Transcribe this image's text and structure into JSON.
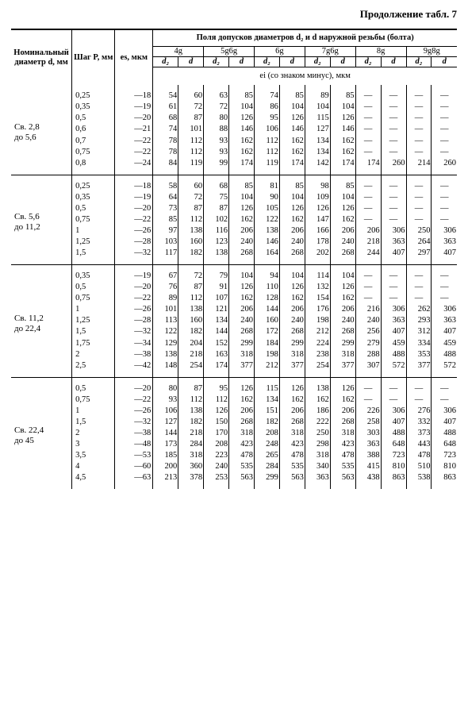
{
  "caption": "Продолжение табл. 7",
  "header": {
    "nominal": "Номи­наль­ный диаметр d, мм",
    "pitch": "Шаг P, мм",
    "es": "es, мкм",
    "group_title": "Поля допусков диаметров d₂ и d наружной резьбы (болта)",
    "tol_classes": [
      "4g",
      "5g6g",
      "6g",
      "7g6g",
      "8g",
      "9g8g"
    ],
    "sub_d2": "d₂",
    "sub_d": "d",
    "ei_line": "ei (со знаком минус), мкм"
  },
  "sections": [
    {
      "label_lines": [
        "Св. 2,8",
        "до 5,6"
      ],
      "rows": [
        {
          "P": "0,25",
          "es": "—18",
          "v": [
            "54",
            "60",
            "63",
            "85",
            "74",
            "85",
            "89",
            "85",
            "—",
            "—",
            "—",
            "—"
          ]
        },
        {
          "P": "0,35",
          "es": "—19",
          "v": [
            "61",
            "72",
            "72",
            "104",
            "86",
            "104",
            "104",
            "104",
            "—",
            "—",
            "—",
            "—"
          ]
        },
        {
          "P": "0,5",
          "es": "—20",
          "v": [
            "68",
            "87",
            "80",
            "126",
            "95",
            "126",
            "115",
            "126",
            "—",
            "—",
            "—",
            "—"
          ]
        },
        {
          "P": "0,6",
          "es": "—21",
          "v": [
            "74",
            "101",
            "88",
            "146",
            "106",
            "146",
            "127",
            "146",
            "—",
            "—",
            "—",
            "—"
          ]
        },
        {
          "P": "0,7",
          "es": "—22",
          "v": [
            "78",
            "112",
            "93",
            "162",
            "112",
            "162",
            "134",
            "162",
            "—",
            "—",
            "—",
            "—"
          ]
        },
        {
          "P": "0,75",
          "es": "—22",
          "v": [
            "78",
            "112",
            "93",
            "162",
            "112",
            "162",
            "134",
            "162",
            "—",
            "—",
            "—",
            "—"
          ]
        },
        {
          "P": "0,8",
          "es": "—24",
          "v": [
            "84",
            "119",
            "99",
            "174",
            "119",
            "174",
            "142",
            "174",
            "174",
            "260",
            "214",
            "260"
          ]
        }
      ]
    },
    {
      "label_lines": [
        "Св. 5,6",
        "до 11,2"
      ],
      "rows": [
        {
          "P": "0,25",
          "es": "—18",
          "v": [
            "58",
            "60",
            "68",
            "85",
            "81",
            "85",
            "98",
            "85",
            "—",
            "—",
            "—",
            "—"
          ]
        },
        {
          "P": "0,35",
          "es": "—19",
          "v": [
            "64",
            "72",
            "75",
            "104",
            "90",
            "104",
            "109",
            "104",
            "—",
            "—",
            "—",
            "—"
          ]
        },
        {
          "P": "0,5",
          "es": "—20",
          "v": [
            "73",
            "87",
            "87",
            "126",
            "105",
            "126",
            "126",
            "126",
            "—",
            "—",
            "—",
            "—"
          ]
        },
        {
          "P": "0,75",
          "es": "—22",
          "v": [
            "85",
            "112",
            "102",
            "162",
            "122",
            "162",
            "147",
            "162",
            "—",
            "—",
            "—",
            "—"
          ]
        },
        {
          "P": "1",
          "es": "—26",
          "v": [
            "97",
            "138",
            "116",
            "206",
            "138",
            "206",
            "166",
            "206",
            "206",
            "306",
            "250",
            "306"
          ]
        },
        {
          "P": "1,25",
          "es": "—28",
          "v": [
            "103",
            "160",
            "123",
            "240",
            "146",
            "240",
            "178",
            "240",
            "218",
            "363",
            "264",
            "363"
          ]
        },
        {
          "P": "1,5",
          "es": "—32",
          "v": [
            "117",
            "182",
            "138",
            "268",
            "164",
            "268",
            "202",
            "268",
            "244",
            "407",
            "297",
            "407"
          ]
        }
      ]
    },
    {
      "label_lines": [
        "Св. 11,2",
        "до 22,4"
      ],
      "rows": [
        {
          "P": "0,35",
          "es": "—19",
          "v": [
            "67",
            "72",
            "79",
            "104",
            "94",
            "104",
            "114",
            "104",
            "—",
            "—",
            "—",
            "—"
          ]
        },
        {
          "P": "0,5",
          "es": "—20",
          "v": [
            "76",
            "87",
            "91",
            "126",
            "110",
            "126",
            "132",
            "126",
            "—",
            "—",
            "—",
            "—"
          ]
        },
        {
          "P": "0,75",
          "es": "—22",
          "v": [
            "89",
            "112",
            "107",
            "162",
            "128",
            "162",
            "154",
            "162",
            "—",
            "—",
            "—",
            "—"
          ]
        },
        {
          "P": "1",
          "es": "—26",
          "v": [
            "101",
            "138",
            "121",
            "206",
            "144",
            "206",
            "176",
            "206",
            "216",
            "306",
            "262",
            "306"
          ]
        },
        {
          "P": "1,25",
          "es": "—28",
          "v": [
            "113",
            "160",
            "134",
            "240",
            "160",
            "240",
            "198",
            "240",
            "240",
            "363",
            "293",
            "363"
          ]
        },
        {
          "P": "1,5",
          "es": "—32",
          "v": [
            "122",
            "182",
            "144",
            "268",
            "172",
            "268",
            "212",
            "268",
            "256",
            "407",
            "312",
            "407"
          ]
        },
        {
          "P": "1,75",
          "es": "—34",
          "v": [
            "129",
            "204",
            "152",
            "299",
            "184",
            "299",
            "224",
            "299",
            "279",
            "459",
            "334",
            "459"
          ]
        },
        {
          "P": "2",
          "es": "—38",
          "v": [
            "138",
            "218",
            "163",
            "318",
            "198",
            "318",
            "238",
            "318",
            "288",
            "488",
            "353",
            "488"
          ]
        },
        {
          "P": "2,5",
          "es": "—42",
          "v": [
            "148",
            "254",
            "174",
            "377",
            "212",
            "377",
            "254",
            "377",
            "307",
            "572",
            "377",
            "572"
          ]
        }
      ]
    },
    {
      "label_lines": [
        "Св. 22,4",
        "до 45"
      ],
      "rows": [
        {
          "P": "0,5",
          "es": "—20",
          "v": [
            "80",
            "87",
            "95",
            "126",
            "115",
            "126",
            "138",
            "126",
            "—",
            "—",
            "—",
            "—"
          ]
        },
        {
          "P": "0,75",
          "es": "—22",
          "v": [
            "93",
            "112",
            "112",
            "162",
            "134",
            "162",
            "162",
            "162",
            "—",
            "—",
            "—",
            "—"
          ]
        },
        {
          "P": "1",
          "es": "—26",
          "v": [
            "106",
            "138",
            "126",
            "206",
            "151",
            "206",
            "186",
            "206",
            "226",
            "306",
            "276",
            "306"
          ]
        },
        {
          "P": "1,5",
          "es": "—32",
          "v": [
            "127",
            "182",
            "150",
            "268",
            "182",
            "268",
            "222",
            "268",
            "258",
            "407",
            "332",
            "407"
          ]
        },
        {
          "P": "2",
          "es": "—38",
          "v": [
            "144",
            "218",
            "170",
            "318",
            "208",
            "318",
            "250",
            "318",
            "303",
            "488",
            "373",
            "488"
          ]
        },
        {
          "P": "3",
          "es": "—48",
          "v": [
            "173",
            "284",
            "208",
            "423",
            "248",
            "423",
            "298",
            "423",
            "363",
            "648",
            "443",
            "648"
          ]
        },
        {
          "P": "3,5",
          "es": "—53",
          "v": [
            "185",
            "318",
            "223",
            "478",
            "265",
            "478",
            "318",
            "478",
            "388",
            "723",
            "478",
            "723"
          ]
        },
        {
          "P": "4",
          "es": "—60",
          "v": [
            "200",
            "360",
            "240",
            "535",
            "284",
            "535",
            "340",
            "535",
            "415",
            "810",
            "510",
            "810"
          ]
        },
        {
          "P": "4,5",
          "es": "—63",
          "v": [
            "213",
            "378",
            "253",
            "563",
            "299",
            "563",
            "363",
            "563",
            "438",
            "863",
            "538",
            "863"
          ]
        }
      ]
    }
  ]
}
